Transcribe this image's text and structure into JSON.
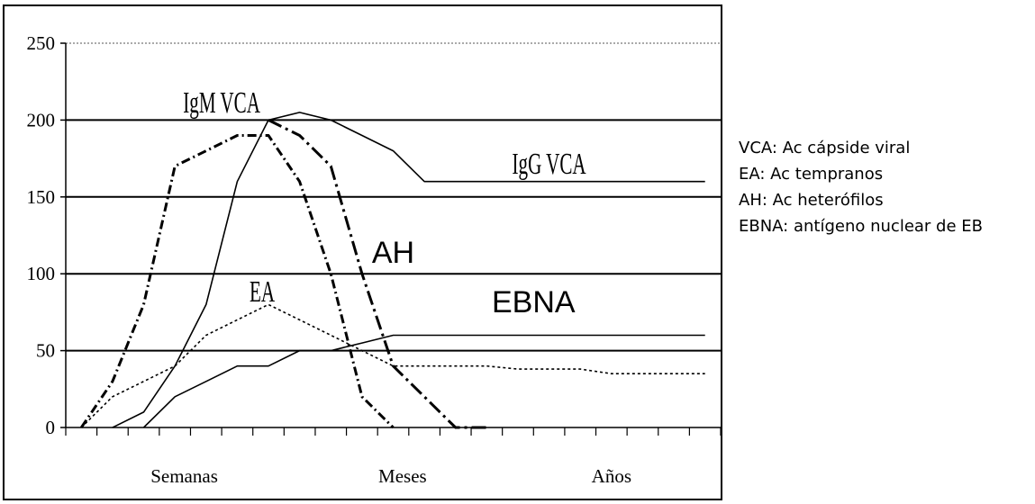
{
  "chart_data": {
    "type": "line",
    "ylim": [
      0,
      250
    ],
    "y_ticks": [
      0,
      50,
      100,
      150,
      200,
      250
    ],
    "x_category_labels": [
      "Semanas",
      "Meses",
      "Años"
    ],
    "grid": true,
    "series": [
      {
        "name": "IgM VCA",
        "style": "dash-dot",
        "x": [
          0.5,
          1.5,
          2.5,
          3.5,
          4.5,
          5.5,
          6.5,
          7.5,
          8.5,
          9.5,
          10.5
        ],
        "y": [
          0,
          30,
          80,
          170,
          180,
          190,
          190,
          160,
          100,
          20,
          0
        ]
      },
      {
        "name": "IgG VCA",
        "style": "solid",
        "x": [
          1.5,
          2.5,
          3.5,
          4.5,
          5.5,
          6.5,
          7.5,
          8.5,
          9.5,
          10.5,
          11.5,
          12.5,
          13.5,
          14.5,
          15.5,
          16.5,
          17.5,
          18.5,
          19.5,
          20.5
        ],
        "y": [
          0,
          10,
          40,
          80,
          160,
          200,
          205,
          200,
          190,
          180,
          160,
          160,
          160,
          160,
          160,
          160,
          160,
          160,
          160,
          160
        ]
      },
      {
        "name": "EA",
        "style": "dotted",
        "x": [
          0.5,
          1.5,
          2.5,
          3.5,
          4.5,
          5.5,
          6.5,
          7.5,
          8.5,
          9.5,
          10.5,
          11.5,
          12.5,
          13.5,
          14.5,
          15.5,
          16.5,
          17.5,
          18.5,
          19.5,
          20.5
        ],
        "y": [
          0,
          20,
          30,
          40,
          60,
          70,
          80,
          70,
          60,
          50,
          40,
          40,
          40,
          40,
          38,
          38,
          38,
          35,
          35,
          35,
          35
        ]
      },
      {
        "name": "AH",
        "style": "long-dash-dot",
        "x": [
          6.5,
          7.5,
          8.5,
          9.5,
          10.5,
          11.5,
          12.5,
          13.5
        ],
        "y": [
          200,
          190,
          170,
          100,
          40,
          20,
          0,
          0
        ]
      },
      {
        "name": "EBNA",
        "style": "solid",
        "x": [
          2.5,
          3.5,
          4.5,
          5.5,
          6.5,
          7.5,
          8.5,
          9.5,
          10.5,
          11.5,
          12.5,
          13.5,
          14.5,
          15.5,
          16.5,
          17.5,
          18.5,
          19.5,
          20.5
        ],
        "y": [
          0,
          20,
          30,
          40,
          40,
          50,
          50,
          55,
          60,
          60,
          60,
          60,
          60,
          60,
          60,
          60,
          60,
          60,
          60
        ]
      }
    ],
    "annotations": [
      {
        "text": "IgM VCA",
        "x": 5,
        "y": 205
      },
      {
        "text": "IgG VCA",
        "x": 15.5,
        "y": 165
      },
      {
        "text": "AH",
        "x": 10.5,
        "y": 107
      },
      {
        "text": "EA",
        "x": 6.3,
        "y": 82
      },
      {
        "text": "EBNA",
        "x": 15,
        "y": 75
      }
    ]
  },
  "legend": {
    "items": [
      "VCA: Ac cápside viral",
      "EA: Ac tempranos",
      "AH: Ac heterófilos",
      "EBNA: antígeno nuclear de EB"
    ]
  }
}
